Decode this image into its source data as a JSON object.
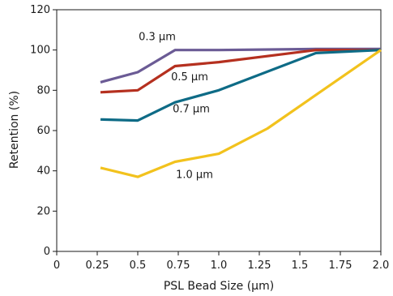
{
  "chart_data": {
    "type": "line",
    "title": "",
    "xlabel": "PSL Bead Size (µm)",
    "ylabel": "Retention (%)",
    "xlim": [
      0,
      2.0
    ],
    "ylim": [
      0,
      120
    ],
    "xticks": [
      0,
      0.25,
      0.5,
      0.75,
      1.0,
      1.25,
      1.5,
      1.75,
      2.0
    ],
    "xtick_labels": [
      "0",
      "0.25",
      "0.5",
      "0.75",
      "1.0",
      "1.25",
      "1.5",
      "1.75",
      "2.0"
    ],
    "yticks": [
      0,
      20,
      40,
      60,
      80,
      100,
      120
    ],
    "ytick_labels": [
      "0",
      "20",
      "40",
      "60",
      "80",
      "100",
      "120"
    ],
    "grid": false,
    "series": [
      {
        "name": "0.3 µm",
        "color": "#6b5b95",
        "x": [
          0.27,
          0.5,
          0.73,
          1.0,
          1.6,
          2.0
        ],
        "y": [
          84,
          89,
          100,
          100,
          100.5,
          100.5
        ],
        "label_at": [
          0.62,
          105
        ]
      },
      {
        "name": "0.5 µm",
        "color": "#b5301f",
        "x": [
          0.27,
          0.5,
          0.73,
          1.0,
          1.6,
          2.0
        ],
        "y": [
          79,
          80,
          92,
          94,
          100,
          100
        ],
        "label_at": [
          0.82,
          85
        ]
      },
      {
        "name": "0.7 µm",
        "color": "#0e6b86",
        "x": [
          0.27,
          0.5,
          0.73,
          1.0,
          1.6,
          2.0
        ],
        "y": [
          65.5,
          65,
          74,
          80,
          98.5,
          100
        ],
        "label_at": [
          0.83,
          69
        ]
      },
      {
        "name": "1.0 µm",
        "color": "#f2c21d",
        "x": [
          0.27,
          0.5,
          0.73,
          1.0,
          1.3,
          2.0
        ],
        "y": [
          41.5,
          37,
          44.5,
          48.5,
          61,
          100
        ],
        "label_at": [
          0.85,
          36.5
        ]
      }
    ]
  }
}
